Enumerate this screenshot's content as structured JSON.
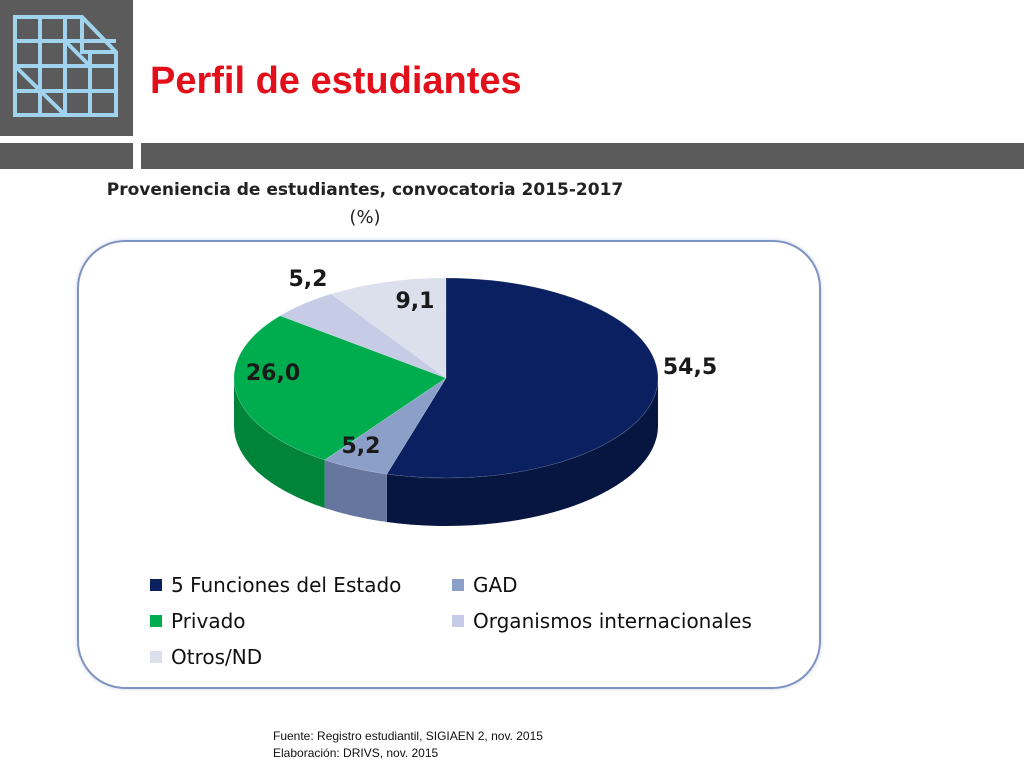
{
  "slide": {
    "title": "Perfil de estudiantes"
  },
  "logo": {
    "icon": "grid-document-icon"
  },
  "colors": {
    "title": "#e3101b",
    "bars": "#5b5b5b",
    "frame": "#7f93c2"
  },
  "chart_data": {
    "type": "pie",
    "title": "Proveniencia de estudiantes, convocatoria 2015-2017",
    "subtitle": "(%)",
    "legend_position": "bottom",
    "slices": [
      {
        "name": "5 Funciones del Estado",
        "value": 54.5,
        "label": "54,5",
        "color": "#0b2060",
        "side": "#061640"
      },
      {
        "name": "GAD",
        "value": 5.2,
        "label": "5,2",
        "color": "#8c9fc9",
        "side": "#66779f"
      },
      {
        "name": "Privado",
        "value": 26.0,
        "label": "26,0",
        "color": "#00ad4e",
        "side": "#00843a"
      },
      {
        "name": "Organismos internacionales",
        "value": 5.2,
        "label": "5,2",
        "color": "#c6cbe6",
        "side": "#a4aac8"
      },
      {
        "name": "Otros/ND",
        "value": 9.1,
        "label": "9,1",
        "color": "#dcdfec",
        "side": "#b9bdd0"
      }
    ]
  },
  "source": {
    "line1": "Fuente: Registro estudiantil, SIGIAEN 2, nov. 2015",
    "line2": "Elaboración: DRIVS, nov. 2015"
  }
}
